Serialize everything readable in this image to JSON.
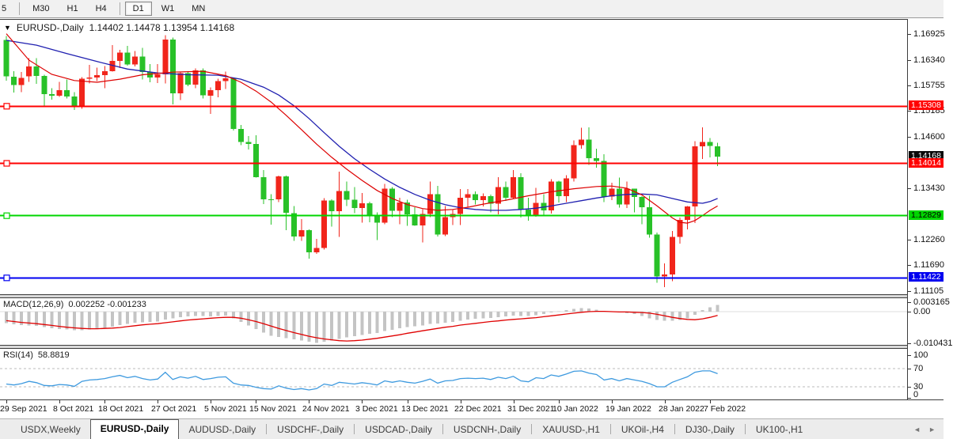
{
  "toolbar": {
    "timeframes": [
      {
        "label": "5",
        "active": false,
        "partial": true
      },
      {
        "label": "M30",
        "active": false
      },
      {
        "label": "H1",
        "active": false
      },
      {
        "label": "H4",
        "active": false
      },
      {
        "label": "D1",
        "active": true
      },
      {
        "label": "W1",
        "active": false
      },
      {
        "label": "MN",
        "active": false
      }
    ]
  },
  "chart": {
    "symbol_title": "EURUSD-,Daily",
    "ohlc_text": "1.14402 1.14478 1.13954 1.14168"
  },
  "icons": {
    "chart_marker": "▼",
    "tab_scroll_left": "◄",
    "tab_scroll_right": "►"
  },
  "indicators": {
    "macd": {
      "label": "MACD(12,26,9)",
      "values_text": "0.002252 -0.001233"
    },
    "rsi": {
      "label": "RSI(14)",
      "value_text": "58.8819"
    }
  },
  "tabs": {
    "items": [
      {
        "label": "USDX,Weekly",
        "active": false
      },
      {
        "label": "EURUSD-,Daily",
        "active": true
      },
      {
        "label": "AUDUSD-,Daily",
        "active": false
      },
      {
        "label": "USDCHF-,Daily",
        "active": false
      },
      {
        "label": "USDCAD-,Daily",
        "active": false
      },
      {
        "label": "USDCNH-,Daily",
        "active": false
      },
      {
        "label": "XAUUSD-,H1",
        "active": false
      },
      {
        "label": "UKOil-,H4",
        "active": false
      },
      {
        "label": "DJ30-,Daily",
        "active": false
      },
      {
        "label": "UK100-,H1",
        "active": false
      }
    ]
  },
  "chart_data": {
    "type": "candlestick",
    "symbol": "EURUSD-,Daily",
    "last_ohlc": {
      "open": "1.14402",
      "high": "1.14478",
      "low": "1.13954",
      "close": "1.14168"
    },
    "note_color_convention": "red = bullish (up), green = bearish (down)",
    "price_axis": {
      "top": 1.17265,
      "bottom": 1.10997,
      "ticks": [
        "1.16925",
        "1.16340",
        "1.15755",
        "1.15185",
        "1.14600",
        "1.13430",
        "1.12260",
        "1.11690",
        "1.11105"
      ]
    },
    "date_ticks": [
      [
        0,
        "29 Sep 2021"
      ],
      [
        7,
        "8 Oct 2021"
      ],
      [
        13,
        "18 Oct 2021"
      ],
      [
        20,
        "27 Oct 2021"
      ],
      [
        27,
        "5 Nov 2021"
      ],
      [
        33,
        "15 Nov 2021"
      ],
      [
        40,
        "24 Nov 2021"
      ],
      [
        47,
        "3 Dec 2021"
      ],
      [
        53,
        "13 Dec 2021"
      ],
      [
        60,
        "22 Dec 2021"
      ],
      [
        67,
        "31 Dec 2021"
      ],
      [
        73,
        "10 Jan 2022"
      ],
      [
        80,
        "19 Jan 2022"
      ],
      [
        87,
        "28 Jan 2022"
      ],
      [
        93,
        "7 Feb 2022"
      ]
    ],
    "candles": [
      [
        1.1681,
        1.169,
        1.1589,
        1.1598
      ],
      [
        1.1598,
        1.161,
        1.1562,
        1.1579
      ],
      [
        1.1579,
        1.1608,
        1.1563,
        1.1595
      ],
      [
        1.1598,
        1.164,
        1.1586,
        1.1621
      ],
      [
        1.1621,
        1.164,
        1.1581,
        1.1599
      ],
      [
        1.1599,
        1.1602,
        1.1529,
        1.1558
      ],
      [
        1.1558,
        1.1572,
        1.1546,
        1.1555
      ],
      [
        1.1555,
        1.1586,
        1.1552,
        1.1567
      ],
      [
        1.1567,
        1.1591,
        1.1548,
        1.1553
      ],
      [
        1.1553,
        1.1563,
        1.1522,
        1.153
      ],
      [
        1.153,
        1.1597,
        1.1525,
        1.1593
      ],
      [
        1.1593,
        1.1624,
        1.1582,
        1.1596
      ],
      [
        1.1596,
        1.1618,
        1.1588,
        1.1601
      ],
      [
        1.1601,
        1.1622,
        1.1572,
        1.161
      ],
      [
        1.161,
        1.1669,
        1.1609,
        1.1633
      ],
      [
        1.1633,
        1.1658,
        1.1617,
        1.1652
      ],
      [
        1.1652,
        1.1667,
        1.1623,
        1.1625
      ],
      [
        1.1625,
        1.1656,
        1.1621,
        1.1643
      ],
      [
        1.1643,
        1.1663,
        1.1591,
        1.1608
      ],
      [
        1.1608,
        1.1626,
        1.1585,
        1.1596
      ],
      [
        1.1596,
        1.1626,
        1.1583,
        1.1603
      ],
      [
        1.1603,
        1.1692,
        1.1582,
        1.1682
      ],
      [
        1.1682,
        1.1686,
        1.1535,
        1.156
      ],
      [
        1.156,
        1.1609,
        1.1545,
        1.1606
      ],
      [
        1.1606,
        1.161,
        1.1576,
        1.158
      ],
      [
        1.158,
        1.1616,
        1.1572,
        1.1612
      ],
      [
        1.1612,
        1.1616,
        1.1548,
        1.1555
      ],
      [
        1.1555,
        1.1573,
        1.1513,
        1.1567
      ],
      [
        1.1567,
        1.1593,
        1.1551,
        1.1588
      ],
      [
        1.1588,
        1.1609,
        1.157,
        1.1594
      ],
      [
        1.1594,
        1.1596,
        1.1476,
        1.1479
      ],
      [
        1.1479,
        1.1488,
        1.1443,
        1.145
      ],
      [
        1.145,
        1.1463,
        1.1433,
        1.1445
      ],
      [
        1.1445,
        1.1465,
        1.1369,
        1.137
      ],
      [
        1.137,
        1.1386,
        1.1309,
        1.132
      ],
      [
        1.132,
        1.1332,
        1.1263,
        1.1318
      ],
      [
        1.132,
        1.1374,
        1.1314,
        1.1372
      ],
      [
        1.1372,
        1.1374,
        1.125,
        1.1289
      ],
      [
        1.1289,
        1.1305,
        1.1226,
        1.1236
      ],
      [
        1.1236,
        1.1275,
        1.1226,
        1.125
      ],
      [
        1.125,
        1.1252,
        1.1186,
        1.12
      ],
      [
        1.12,
        1.123,
        1.1196,
        1.121
      ],
      [
        1.121,
        1.1323,
        1.1206,
        1.1317
      ],
      [
        1.1317,
        1.132,
        1.1258,
        1.1293
      ],
      [
        1.1293,
        1.1383,
        1.1235,
        1.1339
      ],
      [
        1.1339,
        1.136,
        1.1305,
        1.1319
      ],
      [
        1.1319,
        1.1348,
        1.1289,
        1.13
      ],
      [
        1.13,
        1.1334,
        1.1267,
        1.1311
      ],
      [
        1.1311,
        1.1315,
        1.1268,
        1.1285
      ],
      [
        1.1285,
        1.129,
        1.1228,
        1.1267
      ],
      [
        1.1267,
        1.1355,
        1.1264,
        1.1344
      ],
      [
        1.1344,
        1.1348,
        1.128,
        1.1294
      ],
      [
        1.1294,
        1.1324,
        1.1264,
        1.1313
      ],
      [
        1.1313,
        1.1319,
        1.126,
        1.1286
      ],
      [
        1.1286,
        1.1302,
        1.126,
        1.1261
      ],
      [
        1.1261,
        1.1298,
        1.1222,
        1.1287
      ],
      [
        1.1287,
        1.136,
        1.128,
        1.1332
      ],
      [
        1.1332,
        1.135,
        1.1236,
        1.124
      ],
      [
        1.124,
        1.1305,
        1.1237,
        1.128
      ],
      [
        1.128,
        1.1297,
        1.1262,
        1.1287
      ],
      [
        1.1287,
        1.1343,
        1.1262,
        1.1324
      ],
      [
        1.1324,
        1.1343,
        1.1301,
        1.1332
      ],
      [
        1.1332,
        1.1338,
        1.1308,
        1.1318
      ],
      [
        1.1318,
        1.1333,
        1.1304,
        1.1327
      ],
      [
        1.1327,
        1.1331,
        1.129,
        1.131
      ],
      [
        1.131,
        1.137,
        1.1286,
        1.1348
      ],
      [
        1.1348,
        1.136,
        1.1316,
        1.1324
      ],
      [
        1.1324,
        1.1386,
        1.1321,
        1.137
      ],
      [
        1.137,
        1.1379,
        1.1279,
        1.1297
      ],
      [
        1.1297,
        1.1324,
        1.1272,
        1.1284
      ],
      [
        1.1284,
        1.1346,
        1.1281,
        1.1312
      ],
      [
        1.1312,
        1.1332,
        1.1285,
        1.1295
      ],
      [
        1.1295,
        1.1366,
        1.1288,
        1.136
      ],
      [
        1.136,
        1.1362,
        1.1313,
        1.1327
      ],
      [
        1.1327,
        1.1375,
        1.1314,
        1.1367
      ],
      [
        1.1367,
        1.1453,
        1.136,
        1.1443
      ],
      [
        1.1443,
        1.1482,
        1.1435,
        1.1455
      ],
      [
        1.1455,
        1.1483,
        1.1398,
        1.1413
      ],
      [
        1.1413,
        1.1435,
        1.1392,
        1.1407
      ],
      [
        1.1407,
        1.1422,
        1.1314,
        1.1326
      ],
      [
        1.1326,
        1.1358,
        1.1318,
        1.1344
      ],
      [
        1.1344,
        1.1369,
        1.1301,
        1.1308
      ],
      [
        1.1308,
        1.136,
        1.13,
        1.1344
      ],
      [
        1.1344,
        1.1344,
        1.129,
        1.1325
      ],
      [
        1.1325,
        1.1327,
        1.1264,
        1.1302
      ],
      [
        1.1302,
        1.1328,
        1.1233,
        1.124
      ],
      [
        1.124,
        1.1245,
        1.1131,
        1.1145
      ],
      [
        1.1145,
        1.1175,
        1.1121,
        1.115
      ],
      [
        1.115,
        1.1248,
        1.1135,
        1.1235
      ],
      [
        1.1235,
        1.1279,
        1.122,
        1.1273
      ],
      [
        1.1273,
        1.1305,
        1.1252,
        1.1304
      ],
      [
        1.1304,
        1.1452,
        1.1266,
        1.144
      ],
      [
        1.144,
        1.1483,
        1.1411,
        1.145
      ],
      [
        1.145,
        1.1459,
        1.1415,
        1.1441
      ],
      [
        1.14402,
        1.14478,
        1.13954,
        1.14168
      ]
    ],
    "ma_blue_keypoints": [
      [
        0,
        1.168
      ],
      [
        4,
        1.1669
      ],
      [
        8,
        1.165
      ],
      [
        12,
        1.1632
      ],
      [
        16,
        1.1615
      ],
      [
        20,
        1.1606
      ],
      [
        24,
        1.1602
      ],
      [
        28,
        1.1601
      ],
      [
        31,
        1.1592
      ],
      [
        34,
        1.1574
      ],
      [
        36,
        1.1556
      ],
      [
        38,
        1.1532
      ],
      [
        40,
        1.1503
      ],
      [
        42,
        1.1471
      ],
      [
        44,
        1.144
      ],
      [
        46,
        1.1412
      ],
      [
        48,
        1.1388
      ],
      [
        50,
        1.1366
      ],
      [
        52,
        1.1347
      ],
      [
        54,
        1.1331
      ],
      [
        56,
        1.1318
      ],
      [
        58,
        1.1308
      ],
      [
        60,
        1.1301
      ],
      [
        62,
        1.1297
      ],
      [
        64,
        1.1295
      ],
      [
        66,
        1.1295
      ],
      [
        68,
        1.1297
      ],
      [
        70,
        1.13
      ],
      [
        72,
        1.1305
      ],
      [
        74,
        1.1311
      ],
      [
        76,
        1.1317
      ],
      [
        78,
        1.1323
      ],
      [
        80,
        1.1328
      ],
      [
        82,
        1.1331
      ],
      [
        84,
        1.1332
      ],
      [
        86,
        1.133
      ],
      [
        88,
        1.1322
      ],
      [
        90,
        1.1314
      ],
      [
        92,
        1.1311
      ],
      [
        93,
        1.1315
      ],
      [
        94,
        1.1322
      ]
    ],
    "ma_red_keypoints": [
      [
        0,
        1.1695
      ],
      [
        3,
        1.1635
      ],
      [
        6,
        1.1603
      ],
      [
        9,
        1.1589
      ],
      [
        12,
        1.1585
      ],
      [
        15,
        1.1592
      ],
      [
        18,
        1.1602
      ],
      [
        22,
        1.1608
      ],
      [
        26,
        1.161
      ],
      [
        29,
        1.16
      ],
      [
        31,
        1.1585
      ],
      [
        33,
        1.1565
      ],
      [
        35,
        1.154
      ],
      [
        37,
        1.151
      ],
      [
        39,
        1.1478
      ],
      [
        41,
        1.1445
      ],
      [
        43,
        1.1415
      ],
      [
        45,
        1.1388
      ],
      [
        47,
        1.1363
      ],
      [
        49,
        1.134
      ],
      [
        51,
        1.1322
      ],
      [
        53,
        1.1308
      ],
      [
        55,
        1.1299
      ],
      [
        57,
        1.1295
      ],
      [
        59,
        1.1297
      ],
      [
        61,
        1.1302
      ],
      [
        63,
        1.1309
      ],
      [
        66,
        1.1318
      ],
      [
        69,
        1.1328
      ],
      [
        72,
        1.1337
      ],
      [
        75,
        1.1344
      ],
      [
        78,
        1.1349
      ],
      [
        80,
        1.135
      ],
      [
        82,
        1.1345
      ],
      [
        84,
        1.133
      ],
      [
        86,
        1.1305
      ],
      [
        88,
        1.1278
      ],
      [
        89,
        1.1268
      ],
      [
        90,
        1.1266
      ],
      [
        91,
        1.1272
      ],
      [
        92,
        1.1283
      ],
      [
        93,
        1.1295
      ],
      [
        94,
        1.1305
      ]
    ],
    "levels": [
      {
        "price": 1.15308,
        "label": "1.15308",
        "color": "#ff0000",
        "text_color": "#ffffff"
      },
      {
        "price": 1.14014,
        "label": "1.14014",
        "color": "#ff0000",
        "text_color": "#ffffff"
      },
      {
        "price": 1.12829,
        "label": "1.12829",
        "color": "#00d500",
        "text_color": "#000000"
      },
      {
        "price": 1.11422,
        "label": "1.11422",
        "color": "#0000f0",
        "text_color": "#ffffff"
      }
    ],
    "current_price": {
      "price": 1.14168,
      "label": "1.14168",
      "color": "#0a0a0a",
      "text_color": "#ffffff"
    },
    "macd": {
      "unit": 0.0001,
      "bars": [
        -38,
        -42,
        -45,
        -46,
        -48,
        -52,
        -56,
        -58,
        -60,
        -62,
        -62,
        -60,
        -58,
        -55,
        -50,
        -45,
        -41,
        -37,
        -35,
        -34,
        -33,
        -26,
        -22,
        -18,
        -16,
        -14,
        -15,
        -16,
        -15,
        -13,
        -22,
        -34,
        -46,
        -58,
        -70,
        -80,
        -84,
        -88,
        -93,
        -96,
        -100,
        -104,
        -100,
        -96,
        -91,
        -86,
        -82,
        -78,
        -74,
        -71,
        -65,
        -61,
        -56,
        -52,
        -49,
        -46,
        -41,
        -39,
        -37,
        -34,
        -30,
        -27,
        -24,
        -22,
        -21,
        -18,
        -16,
        -13,
        -14,
        -15,
        -12,
        -8,
        -2,
        1,
        5,
        9,
        12,
        10,
        6,
        2,
        -1,
        -3,
        -5,
        -8,
        -14,
        -22,
        -28,
        -30,
        -30,
        -28,
        -22,
        -10,
        5,
        14,
        22.5
      ],
      "signal": [
        -30,
        -33,
        -36,
        -38,
        -40,
        -43,
        -46,
        -49,
        -52,
        -54,
        -56,
        -57,
        -57,
        -56,
        -55,
        -53,
        -50,
        -47,
        -44,
        -42,
        -40,
        -37,
        -34,
        -31,
        -28,
        -26,
        -24,
        -22,
        -20,
        -19,
        -19,
        -22,
        -27,
        -33,
        -40,
        -48,
        -56,
        -63,
        -70,
        -76,
        -82,
        -87,
        -91,
        -94,
        -97,
        -98,
        -97,
        -95,
        -92,
        -89,
        -85,
        -81,
        -77,
        -72,
        -68,
        -64,
        -60,
        -56,
        -52,
        -49,
        -45,
        -42,
        -39,
        -36,
        -33,
        -31,
        -28,
        -26,
        -24,
        -22,
        -20,
        -17,
        -14,
        -11,
        -8,
        -5,
        -2,
        0,
        1,
        1,
        0,
        -1,
        -1,
        -2,
        -3,
        -5,
        -9,
        -14,
        -19,
        -23,
        -26,
        -27,
        -24,
        -19,
        -12.3
      ],
      "scale_ticks": [
        {
          "v": 31.65,
          "label": "0.003165"
        },
        {
          "v": 0,
          "label": "0.00"
        },
        {
          "v": -104.31,
          "label": "-0.010431"
        }
      ]
    },
    "rsi": {
      "values": [
        36,
        34,
        37,
        42,
        39,
        33,
        32,
        35,
        34,
        31,
        42,
        45,
        46,
        48,
        52,
        55,
        50,
        53,
        48,
        45,
        47,
        62,
        46,
        52,
        49,
        53,
        46,
        48,
        51,
        52,
        38,
        34,
        33,
        29,
        26,
        25,
        32,
        27,
        24,
        26,
        23,
        26,
        36,
        33,
        40,
        38,
        36,
        39,
        37,
        34,
        43,
        40,
        43,
        40,
        38,
        42,
        47,
        38,
        43,
        44,
        48,
        49,
        48,
        49,
        46,
        51,
        48,
        53,
        43,
        41,
        50,
        48,
        56,
        53,
        58,
        64,
        65,
        60,
        57,
        45,
        48,
        43,
        48,
        45,
        42,
        37,
        30,
        30,
        40,
        46,
        52,
        62,
        65,
        65,
        58.9
      ],
      "levels": [
        70,
        30
      ],
      "scale_ticks": [
        100,
        70,
        30,
        0
      ]
    },
    "colors": {
      "bull": "#f1251b",
      "bear": "#28c128",
      "ma_blue": "#2020b0",
      "ma_red": "#dd0000",
      "macd_bar": "#c4c4c4",
      "macd_signal": "#e00000",
      "rsi_line": "#3e9adf",
      "dashed_level": "#bbbbbb"
    }
  }
}
